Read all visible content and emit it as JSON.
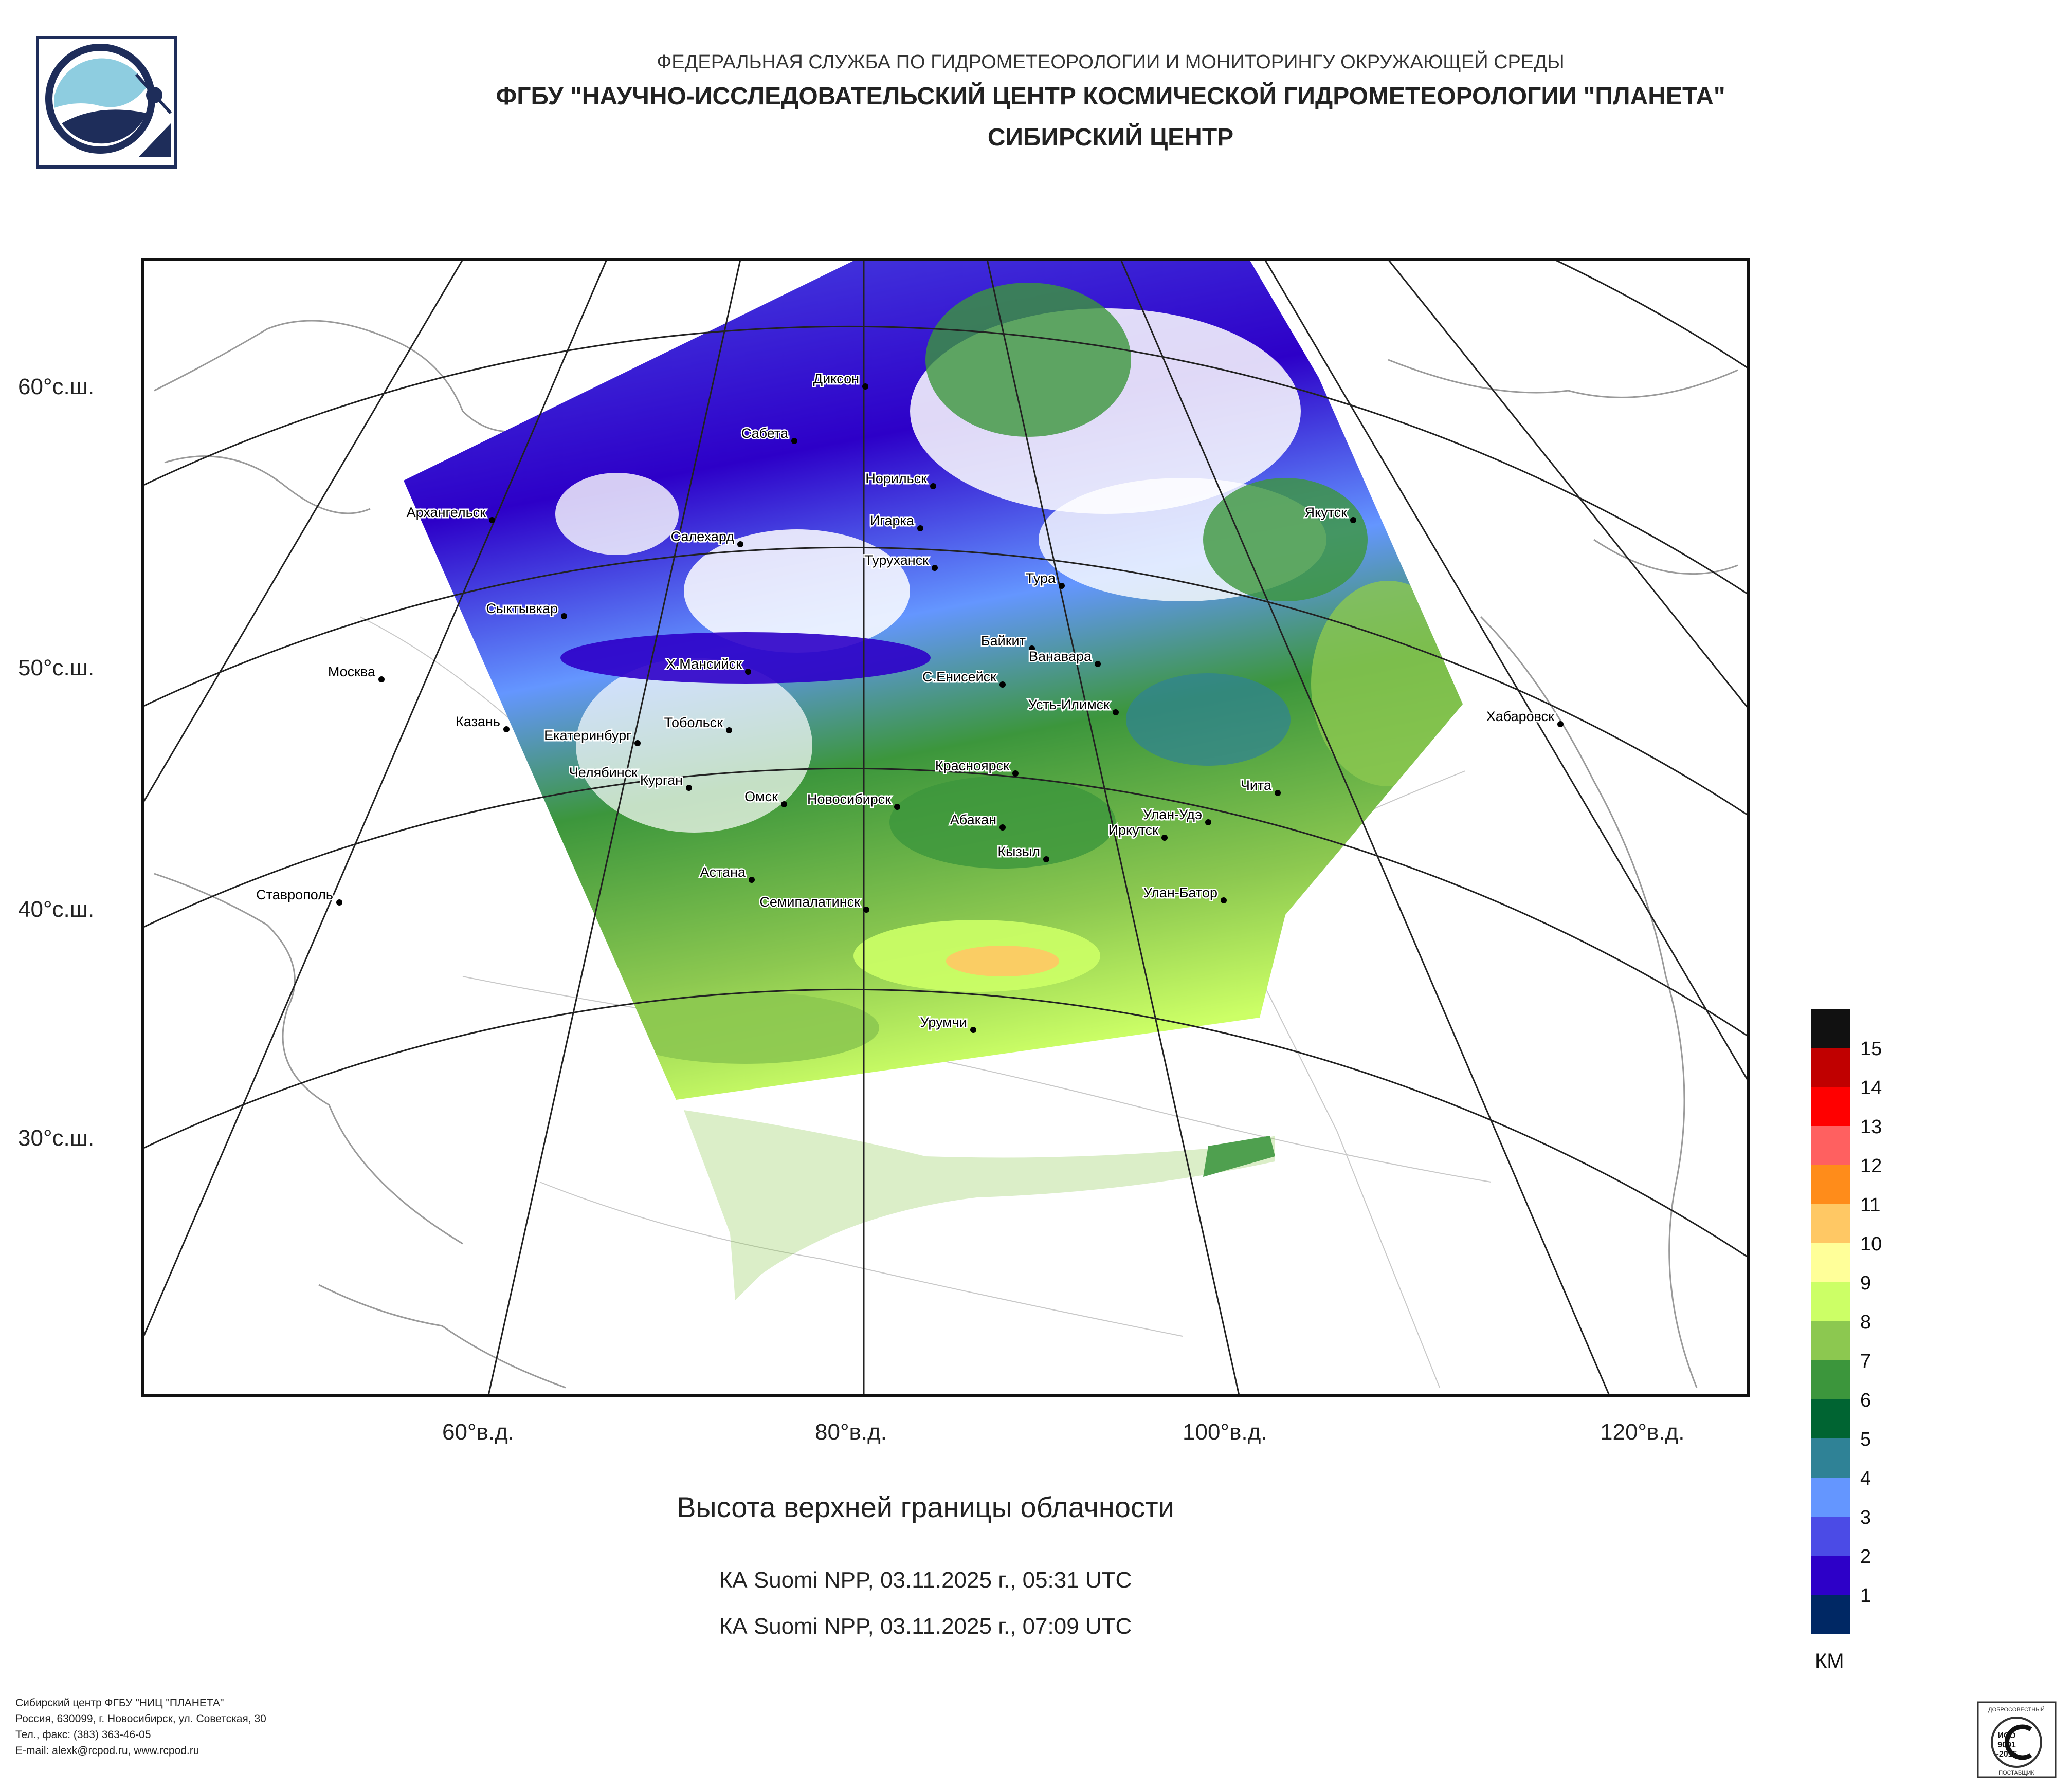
{
  "header": {
    "line1": "ФЕДЕРАЛЬНАЯ СЛУЖБА ПО ГИДРОМЕТЕОРОЛОГИИ И МОНИТОРИНГУ ОКРУЖАЮЩЕЙ СРЕДЫ",
    "line2": "ФГБУ \"НАУЧНО-ИССЛЕДОВАТЕЛЬСКИЙ ЦЕНТР КОСМИЧЕСКОЙ ГИДРОМЕТЕОРОЛОГИИ \"ПЛАНЕТА\"",
    "line3": "СИБИРСКИЙ ЦЕНТР"
  },
  "map": {
    "lat_labels": [
      "60°с.ш.",
      "50°с.ш.",
      "40°с.ш.",
      "30°с.ш."
    ],
    "lon_labels": [
      "60°в.д.",
      "80°в.д.",
      "100°в.д.",
      "120°в.д."
    ],
    "cities": [
      "Диксон",
      "Сабета",
      "Норильск",
      "Архангельск",
      "Игарка",
      "Салехард",
      "Якутск",
      "Туруханск",
      "Тура",
      "Сыктывкар",
      "Байкит",
      "Ванавара",
      "Москва",
      "Х.Мансийск",
      "С.Енисейск",
      "Усть-Илимск",
      "Казань",
      "Тобольск",
      "Хабаровск",
      "Екатеринбург",
      "Красноярск",
      "Челябинск",
      "Курган",
      "Чита",
      "Омск",
      "Новосибирск",
      "Улан-Удэ",
      "Абакан",
      "Иркутск",
      "Кызыл",
      "Астана",
      "Ставрополь",
      "Улан-Батор",
      "Семипалатинск",
      "Урумчи"
    ]
  },
  "caption": {
    "title": "Высота верхней границы облачности",
    "pass1": "КА Suomi NPP, 03.11.2025 г., 05:31 UTC",
    "pass2": "КА Suomi NPP, 03.11.2025 г., 07:09 UTC"
  },
  "legend": {
    "unit": "КМ",
    "labels": [
      "15",
      "14",
      "13",
      "12",
      "11",
      "10",
      "9",
      "8",
      "7",
      "6",
      "5",
      "4",
      "3",
      "2",
      "1"
    ],
    "colors": [
      "#111111",
      "#c00000",
      "#ff0000",
      "#ff6060",
      "#ff8c1a",
      "#ffc864",
      "#ffff99",
      "#ccff66",
      "#8cc850",
      "#3c963c",
      "#006432",
      "#2f8296",
      "#6496ff",
      "#4b4be6",
      "#2d00c8",
      "#002864"
    ]
  },
  "footer": {
    "line1": "Сибирский центр ФГБУ \"НИЦ \"ПЛАНЕТА\"",
    "line2": "Россия, 630099, г. Новосибирск, ул. Советская, 30",
    "line3": "Тел., факс: (383) 363-46-05",
    "line4": "E-mail: alexk@rcpod.ru, www.rcpod.ru"
  },
  "cert": {
    "top": "ДОБРОСОВЕСТНЫЙ",
    "iso1": "ИСО",
    "iso2": "9001",
    "iso3": "-2015",
    "bottom": "ПОСТАВЩИК"
  }
}
